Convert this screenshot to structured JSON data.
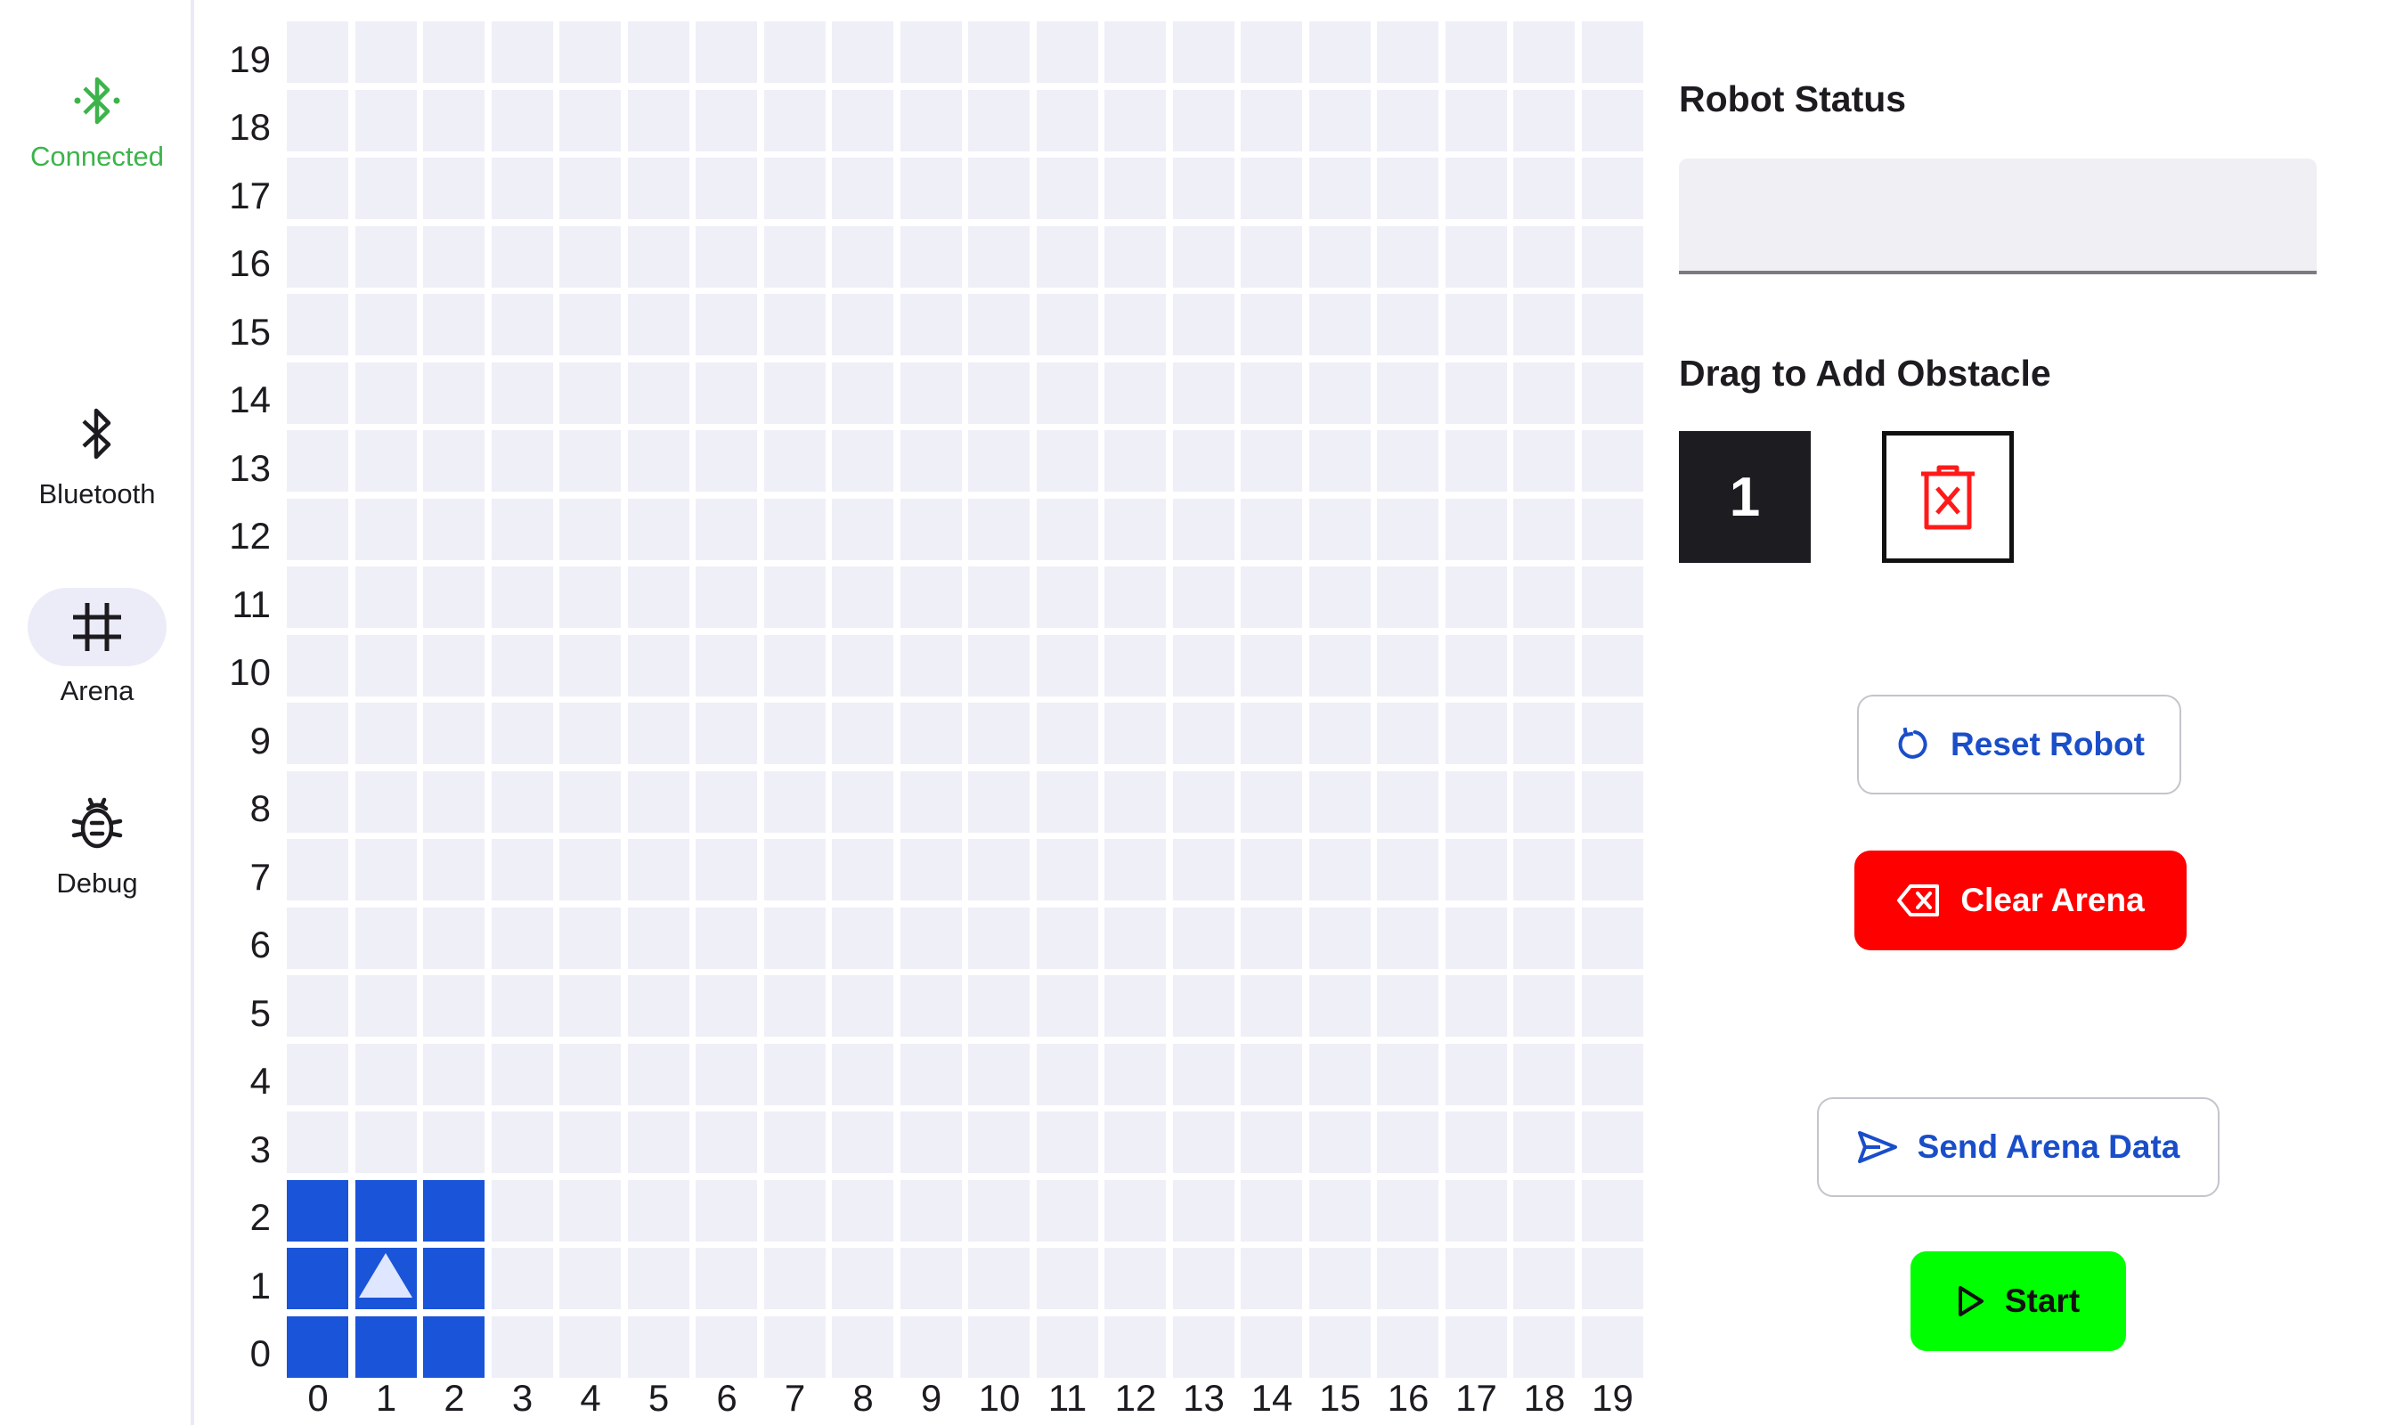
{
  "nav": {
    "connection_label": "Connected",
    "items": [
      {
        "label": "Bluetooth",
        "icon": "bluetooth-icon"
      },
      {
        "label": "Arena",
        "icon": "grid-icon",
        "active": true
      },
      {
        "label": "Debug",
        "icon": "bug-icon"
      }
    ]
  },
  "arena": {
    "y_labels": [
      "19",
      "18",
      "17",
      "16",
      "15",
      "14",
      "13",
      "12",
      "11",
      "10",
      "9",
      "8",
      "7",
      "6",
      "5",
      "4",
      "3",
      "2",
      "1",
      "0"
    ],
    "x_labels": [
      "0",
      "1",
      "2",
      "3",
      "4",
      "5",
      "6",
      "7",
      "8",
      "9",
      "10",
      "11",
      "12",
      "13",
      "14",
      "15",
      "16",
      "17",
      "18",
      "19"
    ],
    "robot": {
      "x": 1,
      "y": 1,
      "facing": "north",
      "color": "#1a54d9"
    },
    "cell_color": "#efeff8"
  },
  "panel": {
    "status_title": "Robot Status",
    "status_value": "",
    "obstacle_title": "Drag to Add Obstacle",
    "obstacle_tile_label": "1",
    "reset_label": "Reset Robot",
    "clear_label": "Clear Arena",
    "send_label": "Send Arena Data",
    "start_label": "Start"
  },
  "colors": {
    "accent_blue": "#1a4ec9",
    "connected_green": "#3cb44a",
    "clear_red": "#ff0000",
    "start_green": "#00ff00"
  }
}
